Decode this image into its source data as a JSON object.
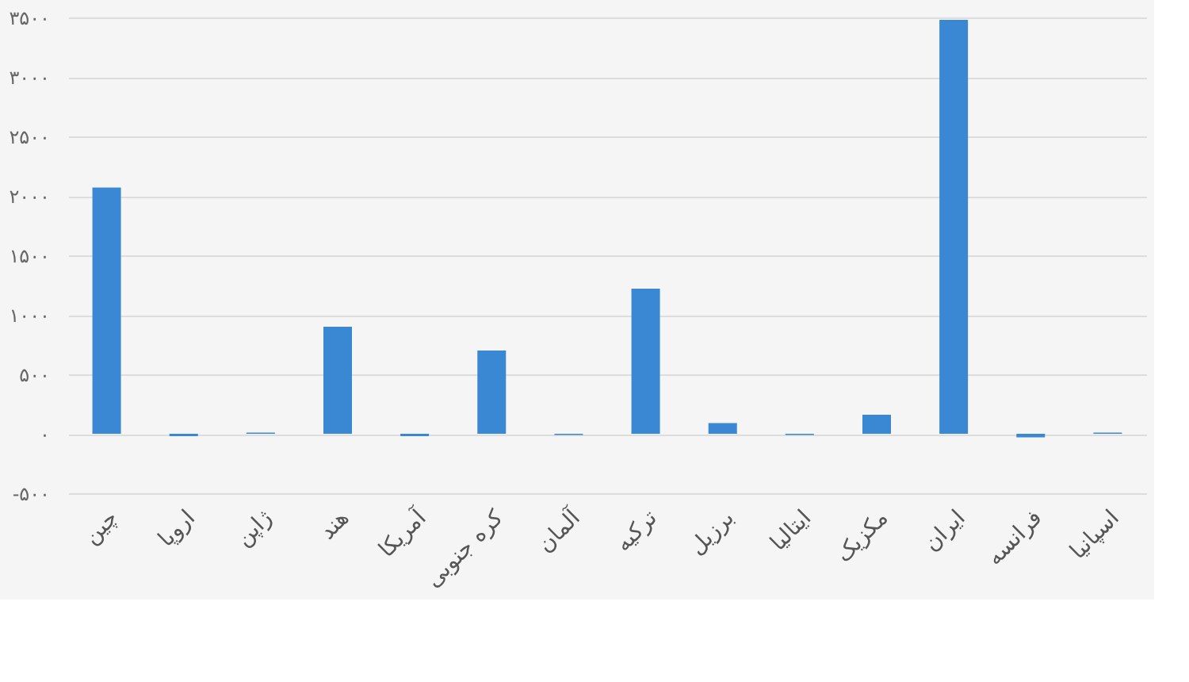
{
  "chart_data": {
    "type": "bar",
    "categories": [
      "چین",
      "اروپا",
      "ژاپن",
      "هند",
      "آمریکا",
      "کره جنوبی",
      "آلمان",
      "ترکیه",
      "برزیل",
      "ایتالیا",
      "مکزیک",
      "ایران",
      "فرانسه",
      "اسپانیا"
    ],
    "values": [
      2070,
      -20,
      10,
      900,
      -20,
      700,
      -10,
      1220,
      90,
      -10,
      160,
      3480,
      -30,
      10
    ],
    "color": "#3a87d4",
    "ylim": [
      -500,
      3500
    ],
    "yticks": [
      {
        "value": -500,
        "label": "-۵۰۰"
      },
      {
        "value": 0,
        "label": "۰"
      },
      {
        "value": 500,
        "label": "۵۰۰"
      },
      {
        "value": 1000,
        "label": "۱۰۰۰"
      },
      {
        "value": 1500,
        "label": "۱۵۰۰"
      },
      {
        "value": 2000,
        "label": "۲۰۰۰"
      },
      {
        "value": 2500,
        "label": "۲۵۰۰"
      },
      {
        "value": 3000,
        "label": "۳۰۰۰"
      },
      {
        "value": 3500,
        "label": "۳۵۰۰"
      }
    ],
    "grid": "y"
  }
}
